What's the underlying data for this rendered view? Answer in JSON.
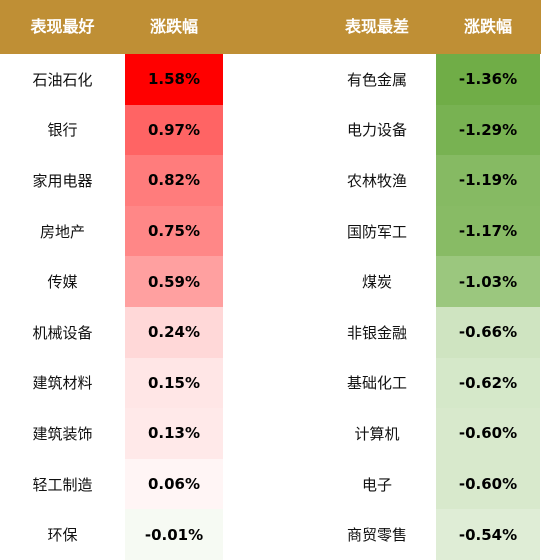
{
  "header": {
    "best": "表现最好",
    "best_change": "涨跌幅",
    "worst": "表现最差",
    "worst_change": "涨跌幅"
  },
  "rows": [
    {
      "best_name": "石油石化",
      "best_value": "1.58%",
      "best_color": "#ff0000",
      "worst_name": "有色金属",
      "worst_value": "-1.36%",
      "worst_color": "#70ad47"
    },
    {
      "best_name": "银行",
      "best_value": "0.97%",
      "best_color": "#ff6464",
      "worst_name": "电力设备",
      "worst_value": "-1.29%",
      "worst_color": "#78b252"
    },
    {
      "best_name": "家用电器",
      "best_value": "0.82%",
      "best_color": "#ff7c7c",
      "worst_name": "农林牧渔",
      "worst_value": "-1.19%",
      "worst_color": "#86ba63"
    },
    {
      "best_name": "房地产",
      "best_value": "0.75%",
      "best_color": "#ff8787",
      "worst_name": "国防军工",
      "worst_value": "-1.17%",
      "worst_color": "#88bb65"
    },
    {
      "best_name": "传媒",
      "best_value": "0.59%",
      "best_color": "#ffa0a0",
      "worst_name": "煤炭",
      "worst_value": "-1.03%",
      "worst_color": "#9bc77e"
    },
    {
      "best_name": "机械设备",
      "best_value": "0.24%",
      "best_color": "#ffd8d8",
      "worst_name": "非银金融",
      "worst_value": "-0.66%",
      "worst_color": "#cfe4c1"
    },
    {
      "best_name": "建筑材料",
      "best_value": "0.15%",
      "best_color": "#ffe6e6",
      "worst_name": "基础化工",
      "worst_value": "-0.62%",
      "worst_color": "#d5e8c9"
    },
    {
      "best_name": "建筑装饰",
      "best_value": "0.13%",
      "best_color": "#ffe9e9",
      "worst_name": "计算机",
      "worst_value": "-0.60%",
      "worst_color": "#d8e9cc"
    },
    {
      "best_name": "轻工制造",
      "best_value": "0.06%",
      "best_color": "#fff5f5",
      "worst_name": "电子",
      "worst_value": "-0.60%",
      "worst_color": "#d8e9cc"
    },
    {
      "best_name": "环保",
      "best_value": "-0.01%",
      "best_color": "#f6faf3",
      "worst_name": "商贸零售",
      "worst_value": "-0.54%",
      "worst_color": "#dfedd6"
    }
  ]
}
